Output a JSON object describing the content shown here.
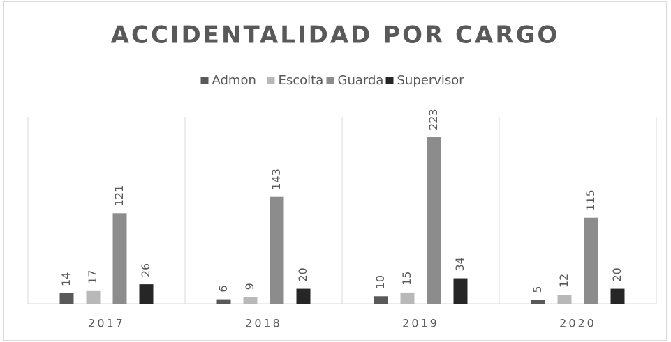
{
  "chart_data": {
    "type": "bar",
    "title": "ACCIDENTALIDAD POR CARGO",
    "categories": [
      "2017",
      "2018",
      "2019",
      "2020"
    ],
    "series": [
      {
        "name": "Admon",
        "color": "#595959",
        "values": [
          14,
          6,
          10,
          5
        ]
      },
      {
        "name": "Escolta",
        "color": "#b8b8b8",
        "values": [
          17,
          9,
          15,
          12
        ]
      },
      {
        "name": "Guarda",
        "color": "#8c8c8c",
        "values": [
          121,
          143,
          223,
          115
        ]
      },
      {
        "name": "Supervisor",
        "color": "#262626",
        "values": [
          26,
          20,
          34,
          20
        ]
      }
    ],
    "ylim": [
      0,
      250
    ],
    "legend": "top"
  }
}
